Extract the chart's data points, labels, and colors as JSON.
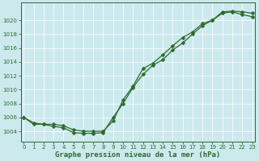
{
  "line1_x": [
    0,
    1,
    2,
    3,
    4,
    5,
    6,
    7,
    8,
    9,
    10,
    11,
    12,
    13,
    14,
    15,
    16,
    17,
    18,
    19,
    20,
    21,
    22,
    23
  ],
  "line1_y": [
    1006.0,
    1005.0,
    1005.0,
    1005.0,
    1004.8,
    1004.2,
    1004.0,
    1004.0,
    1004.0,
    1005.5,
    1008.5,
    1010.5,
    1013.0,
    1013.8,
    1015.0,
    1016.3,
    1017.5,
    1018.3,
    1019.5,
    1020.0,
    1021.2,
    1021.3,
    1021.2,
    1021.0
  ],
  "line2_x": [
    0,
    1,
    2,
    3,
    4,
    5,
    6,
    7,
    8,
    9,
    10,
    11,
    12,
    13,
    14,
    15,
    16,
    17,
    18,
    19,
    20,
    21,
    22,
    23
  ],
  "line2_y": [
    1006.0,
    1005.2,
    1005.0,
    1004.7,
    1004.5,
    1003.8,
    1003.7,
    1003.7,
    1003.8,
    1006.0,
    1008.0,
    1010.3,
    1012.2,
    1013.5,
    1014.3,
    1015.7,
    1016.7,
    1018.0,
    1019.2,
    1020.0,
    1021.0,
    1021.2,
    1020.8,
    1020.5
  ],
  "line_color": "#2d6a2d",
  "bg_color": "#cce9ee",
  "grid_color": "#b0d8d8",
  "xlabel": "Graphe pression niveau de la mer (hPa)",
  "ylim": [
    1002.5,
    1022.5
  ],
  "xlim": [
    -0.3,
    23.3
  ],
  "yticks": [
    1004,
    1006,
    1008,
    1010,
    1012,
    1014,
    1016,
    1018,
    1020
  ],
  "xticks": [
    0,
    1,
    2,
    3,
    4,
    5,
    6,
    7,
    8,
    9,
    10,
    11,
    12,
    13,
    14,
    15,
    16,
    17,
    18,
    19,
    20,
    21,
    22,
    23
  ],
  "tick_fontsize": 5.0,
  "xlabel_fontsize": 6.5,
  "marker": "D",
  "markersize": 2.5,
  "linewidth": 0.9
}
